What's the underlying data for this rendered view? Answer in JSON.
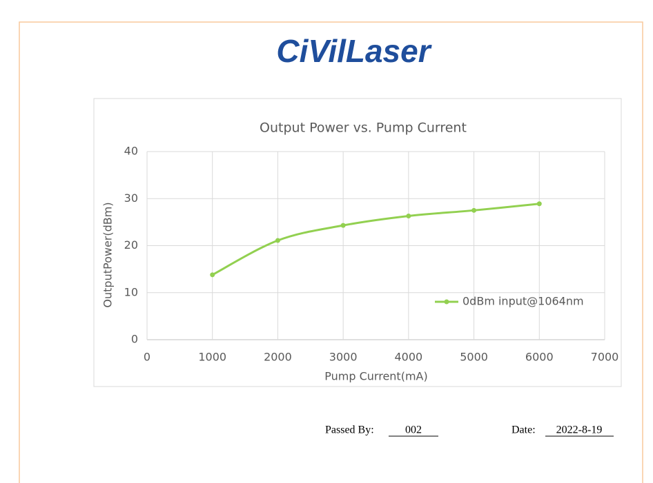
{
  "logo": "CiVilLaser",
  "chart_data": {
    "type": "line",
    "title": "Output Power vs. Pump Current",
    "x_label": "Pump Current(mA)",
    "y_label": "OutputPower(dBm)",
    "x": [
      1000,
      2000,
      3000,
      4000,
      5000,
      6000
    ],
    "series": [
      {
        "name": "0dBm input@1064nm",
        "color": "#92d050",
        "values": [
          13.8,
          21.1,
          24.3,
          26.3,
          27.5,
          28.9
        ]
      }
    ],
    "xlim": [
      0,
      7000
    ],
    "xticks": [
      0,
      1000,
      2000,
      3000,
      4000,
      5000,
      6000,
      7000
    ],
    "ylim": [
      0,
      40
    ],
    "yticks": [
      0,
      10,
      20,
      30,
      40
    ],
    "grid": true,
    "legend": "right",
    "smooth": true
  },
  "footer": {
    "passed_by": {
      "label": "Passed By:",
      "value": "002"
    },
    "date": {
      "label": "Date:",
      "value": "2022-8-19"
    }
  }
}
